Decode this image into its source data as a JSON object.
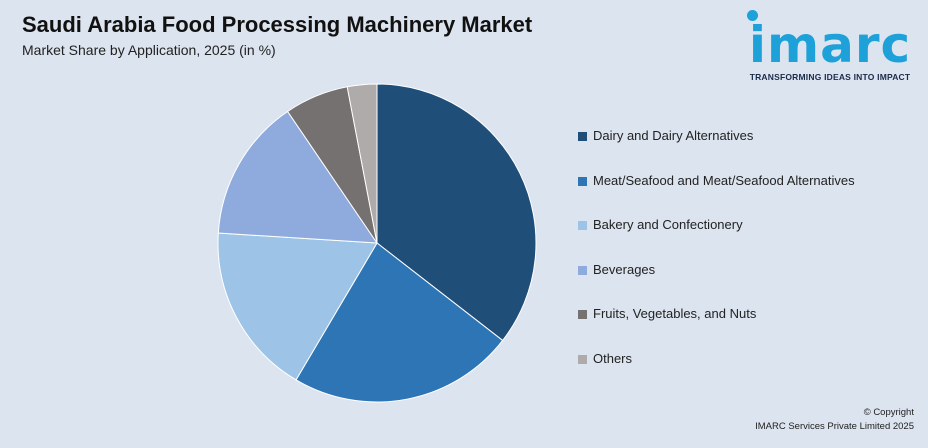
{
  "header": {
    "title": "Saudi Arabia Food Processing Machinery Market",
    "subtitle": "Market Share by Application, 2025 (in %)"
  },
  "logo": {
    "word": "imarc",
    "tagline": "TRANSFORMING IDEAS INTO IMPACT",
    "color": "#1da1d8"
  },
  "footer": {
    "copyright": "© Copyright",
    "company": "IMARC Services Private Limited 2025"
  },
  "chart_data": {
    "type": "pie",
    "title": "Saudi Arabia Food Processing Machinery Market",
    "subtitle": "Market Share by Application, 2025 (in %)",
    "categories": [
      "Dairy and Dairy Alternatives",
      "Meat/Seafood and Meat/Seafood Alternatives",
      "Bakery and Confectionery",
      "Beverages",
      "Fruits, Vegetables, and Nuts",
      "Others"
    ],
    "values": [
      35.5,
      23,
      17.5,
      14.5,
      6.5,
      3
    ],
    "colors": [
      "#1f4e79",
      "#2e75b6",
      "#9dc3e6",
      "#8faadc",
      "#767171",
      "#afabab"
    ],
    "legend_position": "right",
    "start_angle": "12 o'clock",
    "direction": "clockwise"
  }
}
